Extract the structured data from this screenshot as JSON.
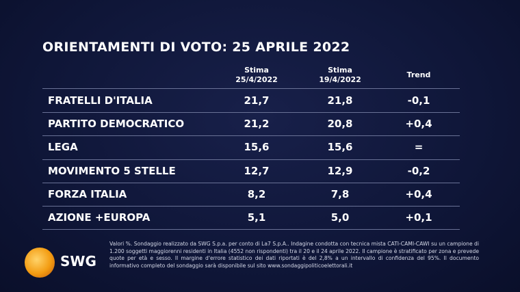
{
  "header": {
    "title": "ORIENTAMENTI DI VOTO: 25 APRILE 2022"
  },
  "table": {
    "columns": [
      [
        "Stima",
        "25/4/2022"
      ],
      [
        "Stima",
        "19/4/2022"
      ],
      [
        "Trend"
      ]
    ],
    "rows": [
      [
        "FRATELLI D'ITALIA",
        "21,7",
        "21,8",
        "-0,1"
      ],
      [
        "PARTITO DEMOCRATICO",
        "21,2",
        "20,8",
        "+0,4"
      ],
      [
        "LEGA",
        "15,6",
        "15,6",
        "="
      ],
      [
        "MOVIMENTO 5 STELLE",
        "12,7",
        "12,9",
        "-0,2"
      ],
      [
        "FORZA ITALIA",
        "8,2",
        "7,8",
        "+0,4"
      ],
      [
        "AZIONE +EUROPA",
        "5,1",
        "5,0",
        "+0,1"
      ]
    ]
  },
  "footer": {
    "logo": "SWG",
    "note": "Valori %. Sondaggio realizzato da SWG S.p.a. per conto di La7 S.p.A.. Indagine condotta con tecnica mista CATI-CAMI-CAWI su un campione di 1.200 soggetti maggiorenni residenti in Italia (4552 non rispondenti) tra il 20 e il 24 aprile 2022. Il campione è stratificato per zona e prevede quote per età e sesso. Il margine d'errore statistico dei dati riportati è del 2,8% a un intervallo di confidenza del 95%. Il documento informativo completo del sondaggio sarà disponibile sul sito www.sondaggipoliticoelettorali.it"
  }
}
